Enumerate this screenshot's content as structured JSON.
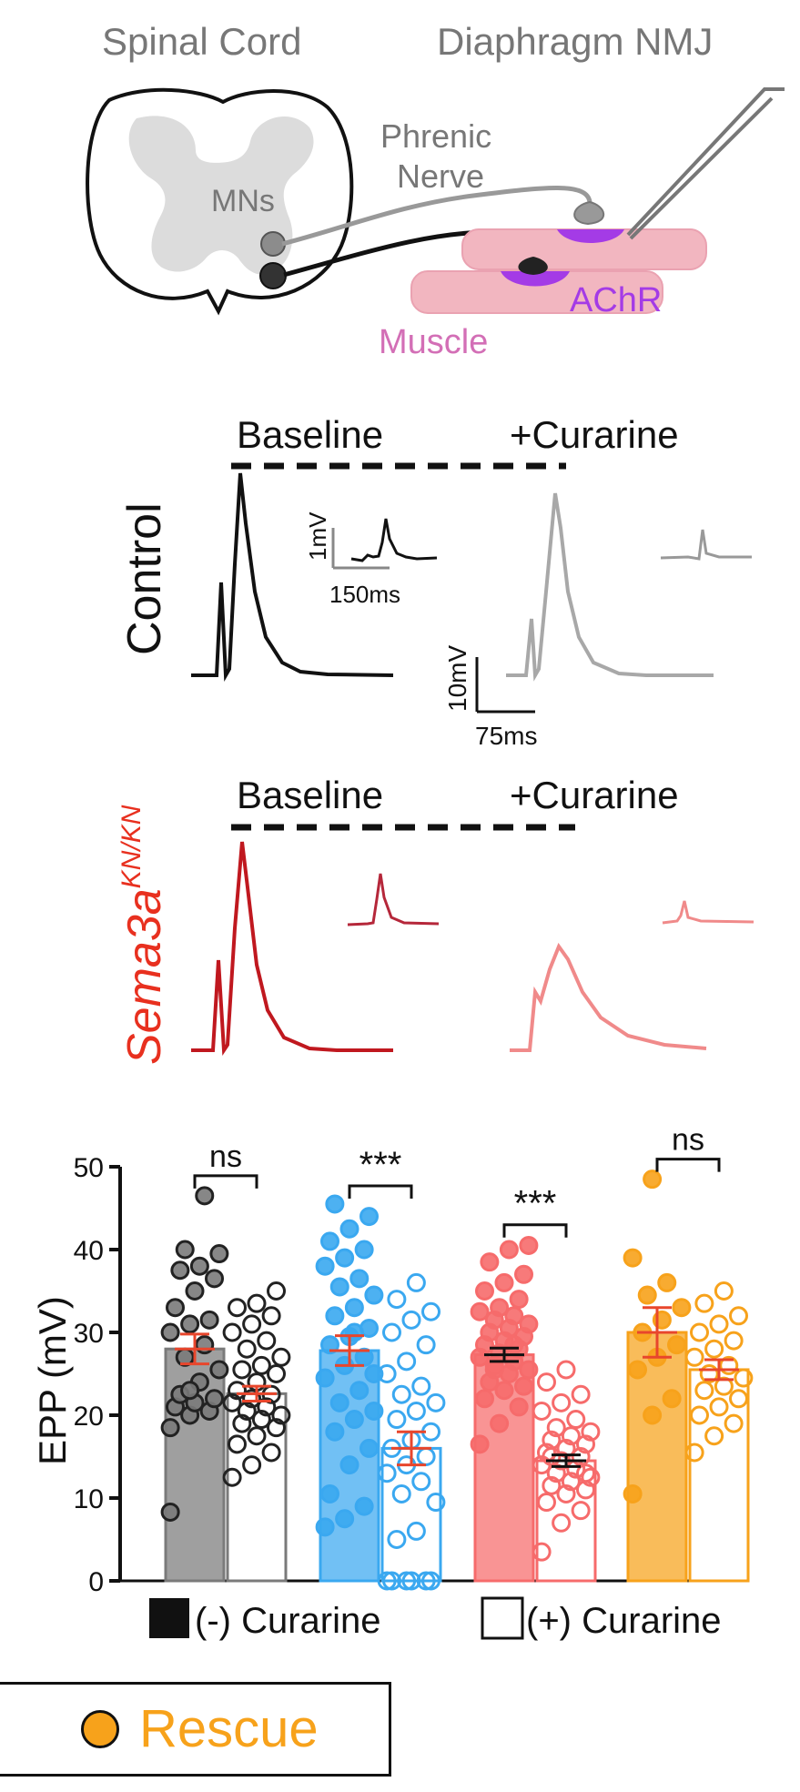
{
  "schematic": {
    "spinal_cord_label": "Spinal Cord",
    "nmj_label": "Diaphragm NMJ",
    "mns_label": "MNs",
    "nerve_label_1": "Phrenic",
    "nerve_label_2": "Nerve",
    "achr_label": "AChR",
    "muscle_label": "Muscle"
  },
  "traces": {
    "baseline_label": "Baseline",
    "curarine_label": "+Curarine",
    "control_label": "Control",
    "mutant_label_main": "Sema3a",
    "mutant_label_sup": "KN/KN",
    "inset_scale_y": "1mV",
    "inset_scale_x": "150ms",
    "scale_y": "10mV",
    "scale_x": "75ms"
  },
  "colors": {
    "control": "#7a7a7a",
    "knockout": "#3aa8f0",
    "mutant": "#f66b6b",
    "rescue": "#f7a21b",
    "error_bar": "#e8462c",
    "muscle": "#f2b6c0",
    "achr": "#a43be6",
    "mutant_trace": "#c0181f",
    "mutant_trace_light": "#f08a8a",
    "mutant_text": "#e8301f"
  },
  "chart_data": {
    "type": "bar",
    "ylabel": "EPP (mV)",
    "ylim": [
      0,
      50
    ],
    "yticks": [
      0,
      10,
      20,
      30,
      40,
      50
    ],
    "groups": [
      {
        "color_key": "control",
        "series": [
          {
            "condition": "(-) Curarine",
            "mean": 28.0,
            "sem": 1.8,
            "points": [
              8.3,
              20,
              20.5,
              21,
              21.5,
              22,
              22.5,
              24,
              25.5,
              27,
              28.5,
              30,
              31,
              31.5,
              33,
              35,
              36.5,
              37.5,
              38,
              39.5,
              40,
              46.5,
              18.5,
              23
            ]
          },
          {
            "condition": "(+) Curarine",
            "mean": 22.6,
            "sem": 0.9,
            "points": [
              12.5,
              14,
              15.5,
              16.5,
              17.5,
              18.5,
              19,
              19.5,
              20,
              20.5,
              21,
              21.5,
              22,
              22.5,
              23,
              24,
              25,
              25.5,
              26,
              27,
              28,
              29,
              30,
              31,
              32,
              33,
              33.5,
              35
            ]
          }
        ],
        "significance": "ns"
      },
      {
        "color_key": "knockout",
        "series": [
          {
            "condition": "(-) Curarine",
            "mean": 27.8,
            "sem": 1.8,
            "points": [
              6.5,
              7.5,
              9,
              10.5,
              14,
              16,
              18,
              19.5,
              20.5,
              21.5,
              23,
              24.5,
              26,
              27,
              28.5,
              29.5,
              30.5,
              32,
              33,
              34.5,
              35.5,
              36.5,
              38,
              39,
              40,
              41,
              42.5,
              44,
              45.5,
              30,
              25
            ]
          },
          {
            "condition": "(+) Curarine",
            "mean": 16.0,
            "sem": 2.0,
            "points": [
              0,
              0,
              0,
              0,
              0,
              0,
              5,
              6,
              9.5,
              10.5,
              12,
              13,
              14,
              15,
              16,
              17,
              18,
              19.5,
              20.5,
              21.5,
              22.5,
              23.5,
              25,
              26.5,
              28.5,
              30,
              31.5,
              32.5,
              34,
              36
            ]
          }
        ],
        "significance": "***"
      },
      {
        "color_key": "mutant",
        "series": [
          {
            "condition": "(-) Curarine",
            "mean": 27.3,
            "sem": 0.8,
            "points": [
              16.5,
              19,
              21,
              22,
              23,
              23.5,
              24,
              25,
              25.5,
              26,
              26.5,
              27,
              27.5,
              28,
              28.5,
              29,
              29.5,
              30,
              30.5,
              31,
              31.5,
              32,
              32.5,
              33,
              34,
              35,
              36,
              37,
              38.5,
              40,
              40.5,
              25.5,
              28.5
            ]
          },
          {
            "condition": "(+) Curarine",
            "mean": 14.5,
            "sem": 0.7,
            "points": [
              3.5,
              7,
              8.5,
              9.5,
              10.5,
              11,
              11.5,
              12,
              12.5,
              13,
              13.5,
              14,
              14.5,
              15,
              15.5,
              16,
              16.5,
              17,
              17.5,
              18,
              18.5,
              19.5,
              20.5,
              21.5,
              22.5,
              24,
              25.5,
              13,
              15
            ]
          }
        ],
        "significance": "***"
      },
      {
        "color_key": "rescue",
        "series": [
          {
            "condition": "(-) Curarine",
            "mean": 30.0,
            "sem": 3.0,
            "points": [
              10.5,
              20,
              22,
              25.5,
              27,
              28.5,
              30,
              31.5,
              33,
              34.5,
              36,
              39,
              48.5
            ]
          },
          {
            "condition": "(+) Curarine",
            "mean": 25.5,
            "sem": 1.2,
            "points": [
              15.5,
              17.5,
              19,
              20,
              21,
              22,
              23,
              23.5,
              24.5,
              25,
              26,
              27,
              28,
              29,
              30,
              31,
              32,
              33.5,
              35
            ]
          }
        ],
        "significance": "ns"
      }
    ],
    "legend": [
      {
        "swatch": "filled",
        "label": "(-) Curarine"
      },
      {
        "swatch": "open",
        "label": "(+) Curarine"
      },
      {
        "swatch": "rescue",
        "label": "Rescue"
      }
    ]
  }
}
